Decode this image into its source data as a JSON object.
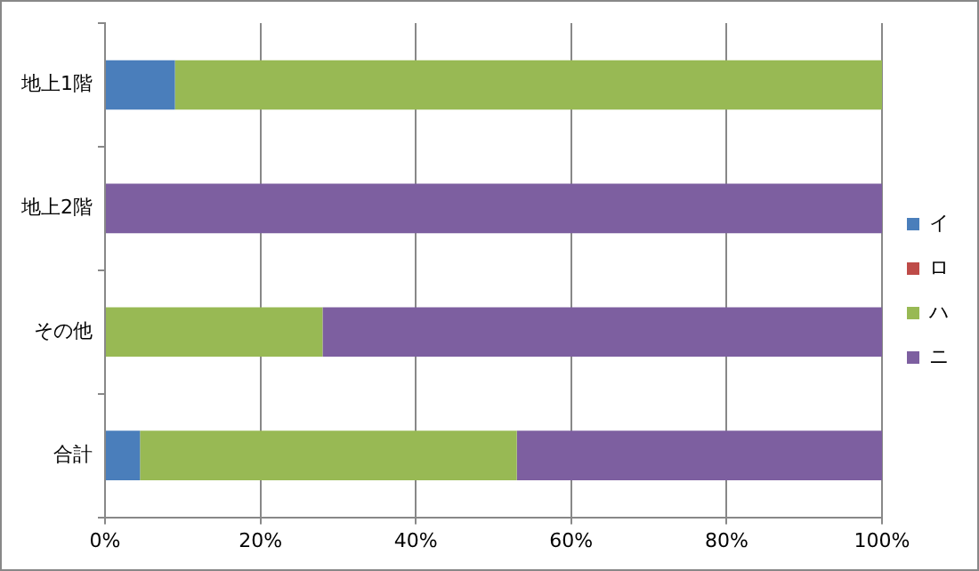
{
  "chart_data": {
    "type": "bar",
    "orientation": "horizontal",
    "stacked": true,
    "categories": [
      "地上1階",
      "地上2階",
      "その他",
      "合計"
    ],
    "series": [
      {
        "name": "イ",
        "color": "#4a7ebb",
        "values": [
          9,
          0,
          0,
          4.5
        ]
      },
      {
        "name": "ロ",
        "color": "#be4b48",
        "values": [
          0,
          0,
          0,
          0
        ]
      },
      {
        "name": "ハ",
        "color": "#98b954",
        "values": [
          91,
          0,
          28,
          48.5
        ]
      },
      {
        "name": "ニ",
        "color": "#7d5fa0",
        "values": [
          0,
          100,
          72,
          47
        ]
      }
    ],
    "xlim": [
      0,
      100
    ],
    "xticks": [
      {
        "value": 0,
        "label": "0%"
      },
      {
        "value": 20,
        "label": "20%"
      },
      {
        "value": 40,
        "label": "40%"
      },
      {
        "value": 60,
        "label": "60%"
      },
      {
        "value": 80,
        "label": "80%"
      },
      {
        "value": 100,
        "label": "100%"
      }
    ],
    "grid": "x",
    "legend": "right"
  }
}
